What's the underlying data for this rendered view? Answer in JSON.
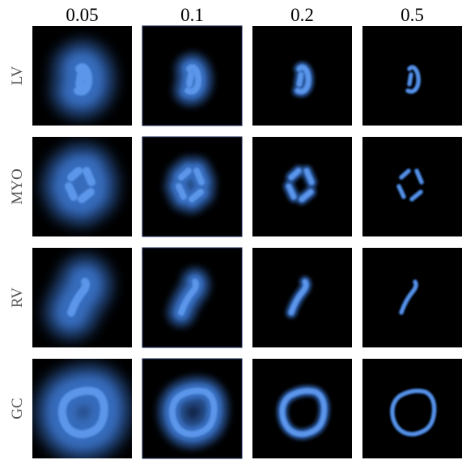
{
  "columns": [
    "0.05",
    "0.1",
    "0.2",
    "0.5"
  ],
  "rows": [
    "LV",
    "MYO",
    "RV",
    "GC"
  ]
}
